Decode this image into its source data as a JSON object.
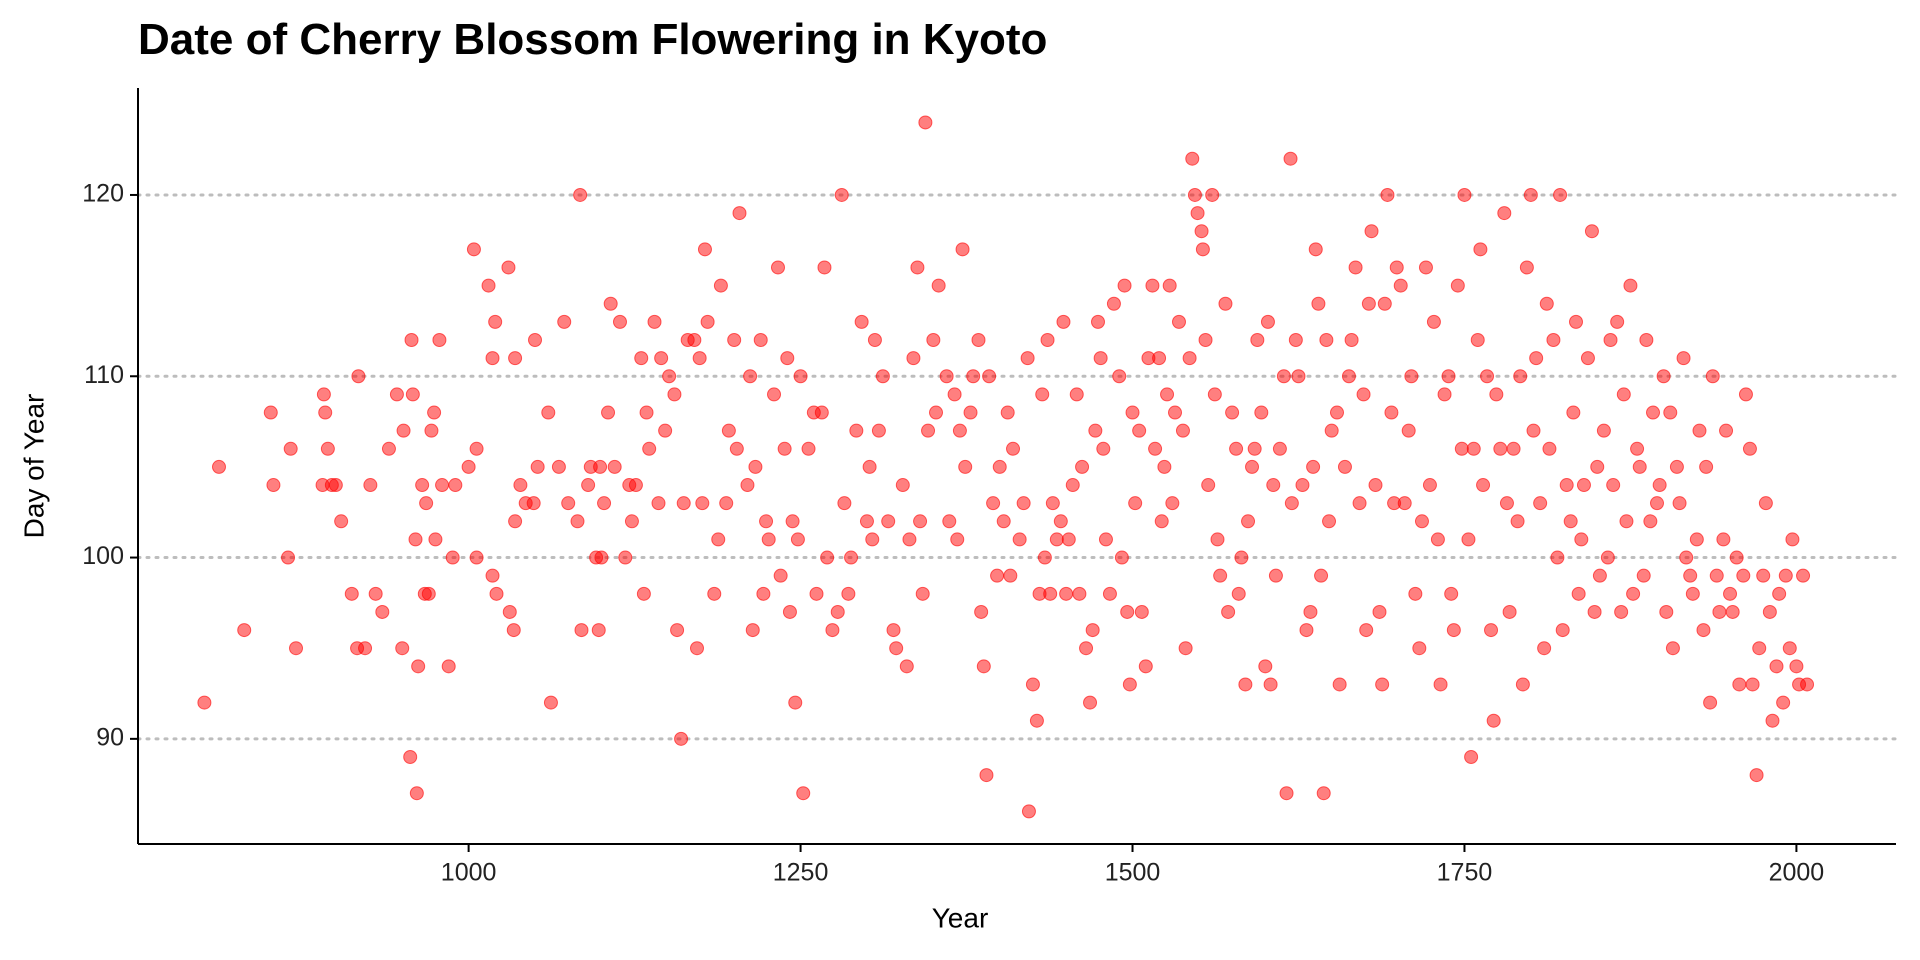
{
  "chart_data": {
    "type": "scatter",
    "title": "Date of Cherry Blossom Flowering in Kyoto",
    "xlabel": "Year",
    "ylabel": "Day of Year",
    "color": "#ff0000",
    "grid": "y",
    "xlim": [
      751,
      2075
    ],
    "ylim": [
      84.2,
      125.9
    ],
    "xticks": [
      1000,
      1250,
      1500,
      1750,
      2000
    ],
    "yticks": [
      90,
      100,
      110,
      120
    ],
    "x": [
      801,
      812,
      831,
      851,
      853,
      864,
      866,
      870,
      890,
      891,
      892,
      894,
      897,
      900,
      904,
      912,
      916,
      917,
      922,
      926,
      930,
      935,
      940,
      946,
      950,
      951,
      956,
      957,
      958,
      960,
      961,
      962,
      965,
      967,
      968,
      970,
      972,
      974,
      975,
      978,
      980,
      985,
      988,
      990,
      1000,
      1004,
      1006,
      1006,
      1015,
      1018,
      1018,
      1020,
      1021,
      1030,
      1031,
      1034,
      1035,
      1035,
      1039,
      1043,
      1049,
      1050,
      1052,
      1060,
      1062,
      1068,
      1072,
      1075,
      1082,
      1084,
      1085,
      1090,
      1092,
      1096,
      1098,
      1099,
      1100,
      1102,
      1105,
      1107,
      1110,
      1114,
      1118,
      1121,
      1123,
      1126,
      1130,
      1132,
      1134,
      1136,
      1140,
      1143,
      1145,
      1148,
      1151,
      1155,
      1157,
      1160,
      1162,
      1165,
      1170,
      1172,
      1174,
      1176,
      1178,
      1180,
      1185,
      1188,
      1190,
      1194,
      1196,
      1200,
      1202,
      1204,
      1210,
      1212,
      1214,
      1216,
      1220,
      1222,
      1224,
      1226,
      1230,
      1233,
      1235,
      1238,
      1240,
      1242,
      1244,
      1246,
      1248,
      1250,
      1252,
      1256,
      1260,
      1262,
      1266,
      1268,
      1270,
      1274,
      1278,
      1281,
      1283,
      1286,
      1288,
      1292,
      1296,
      1300,
      1302,
      1304,
      1306,
      1309,
      1312,
      1316,
      1320,
      1322,
      1327,
      1330,
      1332,
      1335,
      1338,
      1340,
      1342,
      1344,
      1346,
      1350,
      1352,
      1354,
      1360,
      1362,
      1366,
      1368,
      1370,
      1372,
      1374,
      1378,
      1380,
      1384,
      1386,
      1388,
      1390,
      1392,
      1395,
      1398,
      1400,
      1403,
      1406,
      1408,
      1410,
      1415,
      1418,
      1421,
      1422,
      1425,
      1428,
      1430,
      1432,
      1434,
      1436,
      1438,
      1440,
      1443,
      1446,
      1448,
      1450,
      1452,
      1455,
      1458,
      1460,
      1462,
      1465,
      1468,
      1470,
      1472,
      1474,
      1476,
      1478,
      1480,
      1483,
      1486,
      1490,
      1492,
      1494,
      1496,
      1498,
      1500,
      1502,
      1505,
      1507,
      1510,
      1512,
      1515,
      1517,
      1520,
      1522,
      1524,
      1526,
      1528,
      1530,
      1532,
      1535,
      1538,
      1540,
      1543,
      1545,
      1547,
      1549,
      1552,
      1553,
      1555,
      1557,
      1560,
      1562,
      1564,
      1566,
      1570,
      1572,
      1575,
      1578,
      1580,
      1582,
      1585,
      1587,
      1590,
      1592,
      1594,
      1597,
      1600,
      1602,
      1604,
      1606,
      1608,
      1611,
      1614,
      1616,
      1619,
      1620,
      1623,
      1625,
      1628,
      1631,
      1634,
      1636,
      1638,
      1640,
      1642,
      1644,
      1646,
      1648,
      1650,
      1654,
      1656,
      1660,
      1663,
      1665,
      1668,
      1671,
      1674,
      1676,
      1678,
      1680,
      1683,
      1686,
      1688,
      1690,
      1692,
      1695,
      1697,
      1699,
      1702,
      1705,
      1708,
      1710,
      1713,
      1716,
      1718,
      1721,
      1724,
      1727,
      1730,
      1732,
      1735,
      1738,
      1740,
      1742,
      1745,
      1748,
      1750,
      1753,
      1755,
      1757,
      1760,
      1762,
      1764,
      1767,
      1770,
      1772,
      1774,
      1777,
      1780,
      1782,
      1784,
      1787,
      1790,
      1792,
      1794,
      1797,
      1800,
      1802,
      1804,
      1807,
      1810,
      1812,
      1814,
      1817,
      1820,
      1822,
      1824,
      1827,
      1830,
      1832,
      1834,
      1836,
      1838,
      1840,
      1843,
      1846,
      1848,
      1850,
      1852,
      1855,
      1858,
      1860,
      1862,
      1865,
      1868,
      1870,
      1872,
      1875,
      1877,
      1880,
      1882,
      1885,
      1887,
      1890,
      1892,
      1895,
      1897,
      1900,
      1902,
      1905,
      1907,
      1910,
      1912,
      1915,
      1917,
      1920,
      1922,
      1925,
      1927,
      1930,
      1932,
      1935,
      1937,
      1940,
      1942,
      1945,
      1947,
      1950,
      1952,
      1955,
      1957,
      1960,
      1962,
      1965,
      1967,
      1970,
      1972,
      1975,
      1977,
      1980,
      1982,
      1985,
      1987,
      1990,
      1992,
      1995,
      1997,
      2000,
      2002,
      2005,
      2008
    ],
    "values": [
      92,
      105,
      96,
      108,
      104,
      100,
      106,
      95,
      104,
      109,
      108,
      106,
      104,
      104,
      102,
      98,
      95,
      110,
      95,
      104,
      98,
      97,
      106,
      109,
      95,
      107,
      89,
      112,
      109,
      101,
      87,
      94,
      104,
      98,
      103,
      98,
      107,
      108,
      101,
      112,
      104,
      94,
      100,
      104,
      105,
      117,
      106,
      100,
      115,
      111,
      99,
      113,
      98,
      116,
      97,
      96,
      111,
      102,
      104,
      103,
      103,
      112,
      105,
      108,
      92,
      105,
      113,
      103,
      102,
      120,
      96,
      104,
      105,
      100,
      96,
      105,
      100,
      103,
      108,
      114,
      105,
      113,
      100,
      104,
      102,
      104,
      111,
      98,
      108,
      106,
      113,
      103,
      111,
      107,
      110,
      109,
      96,
      90,
      103,
      112,
      112,
      95,
      111,
      103,
      117,
      113,
      98,
      101,
      115,
      103,
      107,
      112,
      106,
      119,
      104,
      110,
      96,
      105,
      112,
      98,
      102,
      101,
      109,
      116,
      99,
      106,
      111,
      97,
      102,
      92,
      101,
      110,
      87,
      106,
      108,
      98,
      108,
      116,
      100,
      96,
      97,
      120,
      103,
      98,
      100,
      107,
      113,
      102,
      105,
      101,
      112,
      107,
      110,
      102,
      96,
      95,
      104,
      94,
      101,
      111,
      116,
      102,
      98,
      124,
      107,
      112,
      108,
      115,
      110,
      102,
      109,
      101,
      107,
      117,
      105,
      108,
      110,
      112,
      97,
      94,
      88,
      110,
      103,
      99,
      105,
      102,
      108,
      99,
      106,
      101,
      103,
      111,
      86,
      93,
      91,
      98,
      109,
      100,
      112,
      98,
      103,
      101,
      102,
      113,
      98,
      101,
      104,
      109,
      98,
      105,
      95,
      92,
      96,
      107,
      113,
      111,
      106,
      101,
      98,
      114,
      110,
      100,
      115,
      97,
      93,
      108,
      103,
      107,
      97,
      94,
      111,
      115,
      106,
      111,
      102,
      105,
      109,
      115,
      103,
      108,
      113,
      107,
      95,
      111,
      122,
      120,
      119,
      118,
      117,
      112,
      104,
      120,
      109,
      101,
      99,
      114,
      97,
      108,
      106,
      98,
      100,
      93,
      102,
      105,
      106,
      112,
      108,
      94,
      113,
      93,
      104,
      99,
      106,
      110,
      87,
      122,
      103,
      112,
      110,
      104,
      96,
      97,
      105,
      117,
      114,
      99,
      87,
      112,
      102,
      107,
      108,
      93,
      105,
      110,
      112,
      116,
      103,
      109,
      96,
      114,
      118,
      104,
      97,
      93,
      114,
      120,
      108,
      103,
      116,
      115,
      103,
      107,
      110,
      98,
      95,
      102,
      116,
      104,
      113,
      101,
      93,
      109,
      110,
      98,
      96,
      115,
      106,
      120,
      101,
      89,
      106,
      112,
      117,
      104,
      110,
      96,
      91,
      109,
      106,
      119,
      103,
      97,
      106,
      102,
      110,
      93,
      116,
      120,
      107,
      111,
      103,
      95,
      114,
      106,
      112,
      100,
      120,
      96,
      104,
      102,
      108,
      113,
      98,
      101,
      104,
      111,
      118,
      97,
      105,
      99,
      107,
      100,
      112,
      104,
      113,
      97,
      109,
      102,
      115,
      98,
      106,
      105,
      99,
      112,
      102,
      108,
      103,
      104,
      110,
      97,
      108,
      95,
      105,
      103,
      111,
      100,
      99,
      98,
      101,
      107,
      96,
      105,
      92,
      110,
      99,
      97,
      101,
      107,
      98,
      97,
      100,
      93,
      99,
      109,
      106,
      93,
      88,
      95,
      99,
      103,
      97,
      91,
      94,
      98,
      92,
      99,
      95,
      101,
      94,
      93,
      99,
      93
    ]
  }
}
